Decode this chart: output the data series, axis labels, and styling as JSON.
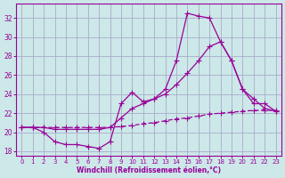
{
  "bg_color": "#cce8e8",
  "grid_color": "#aaaacc",
  "line_color": "#990099",
  "xlabel": "Windchill (Refroidissement éolien,°C)",
  "xlim": [
    -0.5,
    23.5
  ],
  "ylim": [
    17.5,
    33.5
  ],
  "yticks": [
    18,
    20,
    22,
    24,
    26,
    28,
    30,
    32
  ],
  "xticks": [
    0,
    1,
    2,
    3,
    4,
    5,
    6,
    7,
    8,
    9,
    10,
    11,
    12,
    13,
    14,
    15,
    16,
    17,
    18,
    19,
    20,
    21,
    22,
    23
  ],
  "line1_x": [
    0,
    1,
    2,
    3,
    4,
    5,
    6,
    7,
    8,
    9,
    10,
    11,
    12,
    13,
    14,
    15,
    16,
    17,
    18,
    19,
    20,
    21,
    22,
    23
  ],
  "line1_y": [
    20.5,
    20.5,
    20.0,
    19.0,
    18.7,
    18.7,
    18.5,
    18.3,
    19.0,
    23.0,
    24.2,
    23.2,
    23.5,
    24.5,
    27.5,
    32.5,
    32.2,
    32.0,
    29.5,
    27.5,
    24.5,
    23.0,
    23.0,
    22.2
  ],
  "line2_x": [
    0,
    1,
    2,
    3,
    4,
    5,
    6,
    7,
    8,
    9,
    10,
    11,
    12,
    13,
    14,
    15,
    16,
    17,
    18,
    19,
    20,
    21,
    22,
    23
  ],
  "line2_y": [
    20.5,
    20.5,
    20.5,
    20.5,
    20.5,
    20.5,
    20.5,
    20.5,
    20.5,
    20.6,
    20.7,
    20.9,
    21.0,
    21.2,
    21.4,
    21.5,
    21.7,
    21.9,
    22.0,
    22.1,
    22.2,
    22.3,
    22.3,
    22.3
  ],
  "line3_x": [
    0,
    1,
    2,
    3,
    4,
    5,
    6,
    7,
    8,
    9,
    10,
    11,
    12,
    13,
    14,
    15,
    16,
    17,
    18,
    19,
    20,
    21,
    22,
    23
  ],
  "line3_y": [
    20.5,
    20.5,
    20.5,
    20.3,
    20.3,
    20.3,
    20.3,
    20.3,
    20.5,
    21.5,
    22.5,
    23.0,
    23.5,
    24.0,
    25.0,
    26.2,
    27.5,
    29.0,
    29.5,
    27.5,
    24.5,
    23.5,
    22.5,
    22.2
  ]
}
